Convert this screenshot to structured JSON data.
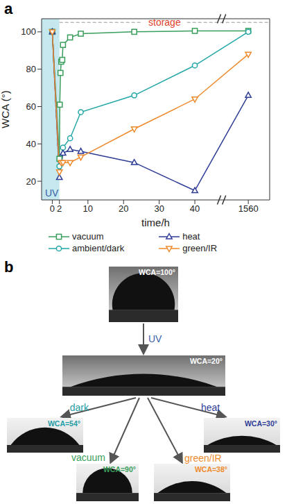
{
  "chart_data": {
    "type": "line",
    "panel_label": "a",
    "x_label": "time/h",
    "y_label": "WCA (°)",
    "xlim": [
      -3,
      1570
    ],
    "x_break": [
      46,
      1550
    ],
    "xticks": [
      0,
      2,
      10,
      20,
      30,
      40,
      1560
    ],
    "ylim": [
      10,
      107
    ],
    "yticks": [
      20,
      40,
      60,
      80,
      100
    ],
    "legend": "bottom",
    "series": [
      {
        "name": "vacuum",
        "color": "#3a9e5c",
        "marker": "square",
        "x": [
          0,
          2,
          2.1,
          2.3,
          2.5,
          2.8,
          3,
          5,
          8,
          23,
          40,
          1560
        ],
        "values": [
          100,
          32,
          61,
          78,
          84,
          85,
          93,
          97,
          99,
          100,
          100.5,
          100.5
        ]
      },
      {
        "name": "ambient/dark",
        "color": "#22a6a6",
        "marker": "circle",
        "x": [
          0,
          2,
          3,
          5,
          8,
          23,
          40,
          1560
        ],
        "values": [
          100,
          28,
          38,
          43,
          57,
          66,
          82,
          100
        ]
      },
      {
        "name": "heat",
        "color": "#2e3d96",
        "marker": "triangle",
        "x": [
          0,
          2,
          3,
          5,
          8,
          23,
          40,
          1560
        ],
        "values": [
          100,
          22,
          35,
          37,
          36,
          30,
          15,
          66
        ]
      },
      {
        "name": "green/IR",
        "color": "#ef8a2c",
        "marker": "triangle-down",
        "x": [
          0,
          2,
          2.5,
          3,
          5,
          8,
          23,
          40,
          1560
        ],
        "values": [
          100,
          25,
          30,
          30,
          30,
          33,
          48,
          64,
          88
        ]
      }
    ],
    "uv_region": {
      "label": "UV",
      "x": [
        -3,
        2
      ],
      "color": "#c4e8ee"
    },
    "uv_drop": {
      "x": [
        0,
        2
      ],
      "values": [
        100,
        22
      ],
      "color": "#e2402f",
      "line_style": "dashed"
    },
    "storage": {
      "label": "storage",
      "x": [
        2,
        1570
      ],
      "color": "#e2402f"
    }
  },
  "diagram": {
    "label": "b",
    "nodes": [
      {
        "label": "WCA=100°",
        "wca": 100,
        "color": "#ffffff"
      },
      {
        "label": "WCA=20°",
        "wca": 20,
        "color": "#ffffff"
      },
      {
        "label": "WCA=54°",
        "wca": 54,
        "color": "#1f9ea6"
      },
      {
        "label": "WCA=30°",
        "wca": 30,
        "color": "#2e3d96"
      },
      {
        "label": "WCA=90°",
        "wca": 90,
        "color": "#3a9e5c"
      },
      {
        "label": "WCA=38°",
        "wca": 38,
        "color": "#ef8a2c"
      }
    ],
    "edges": [
      {
        "from": 0,
        "to": 1,
        "label": "UV",
        "color": "#3d5fa8"
      },
      {
        "from": 1,
        "to": 2,
        "label": "dark",
        "color": "#1f9ea6"
      },
      {
        "from": 1,
        "to": 3,
        "label": "heat",
        "color": "#2e3d96"
      },
      {
        "from": 1,
        "to": 4,
        "label": "vacuum",
        "color": "#3a9e5c"
      },
      {
        "from": 1,
        "to": 5,
        "label": "green/IR",
        "color": "#ef8a2c"
      }
    ]
  }
}
